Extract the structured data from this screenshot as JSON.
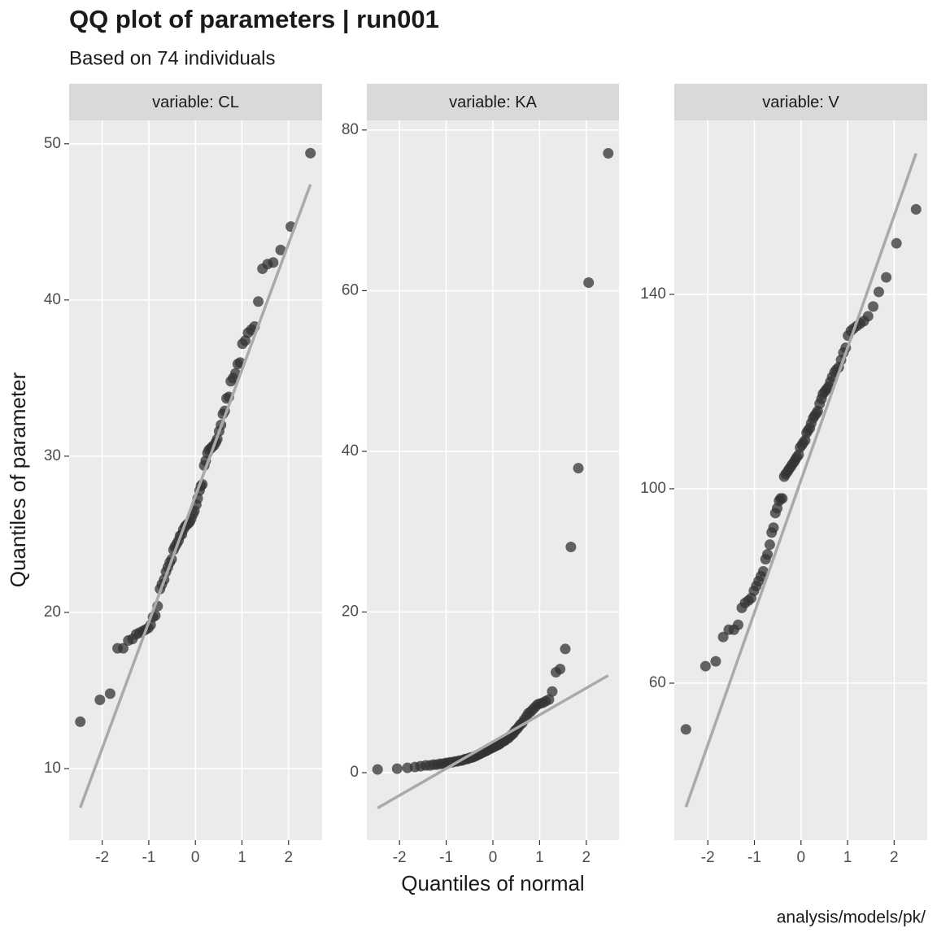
{
  "title": "QQ plot of parameters | run001",
  "subtitle": "Based on 74 individuals",
  "x_label": "Quantiles of normal",
  "y_label": "Quantiles of parameter",
  "caption": "analysis/models/pk/",
  "chart_data": [
    {
      "type": "scatter",
      "title": "variable: CL",
      "color": "#333333",
      "line_color": "#aaaaaa",
      "xlim": [
        -2.71,
        2.72
      ],
      "ylim": [
        5.42,
        51.5
      ],
      "xticks": [
        -2,
        -1,
        0,
        1,
        2
      ],
      "yticks": [
        10,
        20,
        30,
        40,
        50
      ],
      "x": [
        -2.47,
        -2.05,
        -1.83,
        -1.67,
        -1.55,
        -1.44,
        -1.35,
        -1.27,
        -1.2,
        -1.13,
        -1.07,
        -1.01,
        -0.96,
        -0.91,
        -0.86,
        -0.81,
        -0.76,
        -0.72,
        -0.67,
        -0.63,
        -0.59,
        -0.55,
        -0.51,
        -0.47,
        -0.44,
        -0.4,
        -0.36,
        -0.33,
        -0.29,
        -0.26,
        -0.22,
        -0.19,
        -0.15,
        -0.12,
        -0.09,
        -0.05,
        -0.02,
        0.02,
        0.05,
        0.09,
        0.12,
        0.15,
        0.19,
        0.22,
        0.26,
        0.29,
        0.33,
        0.36,
        0.4,
        0.44,
        0.47,
        0.51,
        0.55,
        0.59,
        0.63,
        0.67,
        0.72,
        0.76,
        0.81,
        0.86,
        0.91,
        0.96,
        1.01,
        1.07,
        1.13,
        1.2,
        1.27,
        1.35,
        1.44,
        1.55,
        1.67,
        1.83,
        2.05,
        2.47
      ],
      "y": [
        13.0,
        14.4,
        14.8,
        17.7,
        17.7,
        18.2,
        18.3,
        18.6,
        18.7,
        18.8,
        18.9,
        19.0,
        19.2,
        19.7,
        19.8,
        20.4,
        21.5,
        21.8,
        22.1,
        22.6,
        22.9,
        23.2,
        23.4,
        24.0,
        24.2,
        24.4,
        24.6,
        24.9,
        25.0,
        25.3,
        25.5,
        25.6,
        25.7,
        25.8,
        26.0,
        26.3,
        26.5,
        26.9,
        27.3,
        27.8,
        28.1,
        28.2,
        29.4,
        29.7,
        30.2,
        30.4,
        30.5,
        30.6,
        30.7,
        30.9,
        31.1,
        31.6,
        32.0,
        32.7,
        32.9,
        33.7,
        33.8,
        34.8,
        35.0,
        35.3,
        35.9,
        36.0,
        37.2,
        37.4,
        37.9,
        38.1,
        38.3,
        39.9,
        42.0,
        42.3,
        42.4,
        43.2,
        44.7,
        49.4
      ],
      "line": {
        "x": [
          -2.47,
          2.47
        ],
        "y": [
          7.5,
          47.4
        ]
      }
    },
    {
      "type": "scatter",
      "title": "variable: KA",
      "color": "#333333",
      "line_color": "#aaaaaa",
      "xlim": [
        -2.7,
        2.7
      ],
      "ylim": [
        -8.4,
        81.2
      ],
      "xticks": [
        -2,
        -1,
        0,
        1,
        2
      ],
      "yticks": [
        0,
        20,
        40,
        60,
        80
      ],
      "x": [
        -2.47,
        -2.05,
        -1.83,
        -1.67,
        -1.55,
        -1.44,
        -1.35,
        -1.27,
        -1.2,
        -1.13,
        -1.07,
        -1.01,
        -0.96,
        -0.91,
        -0.86,
        -0.81,
        -0.76,
        -0.72,
        -0.67,
        -0.63,
        -0.59,
        -0.55,
        -0.51,
        -0.47,
        -0.44,
        -0.4,
        -0.36,
        -0.33,
        -0.29,
        -0.26,
        -0.22,
        -0.19,
        -0.15,
        -0.12,
        -0.09,
        -0.05,
        -0.02,
        0.02,
        0.05,
        0.09,
        0.12,
        0.15,
        0.19,
        0.22,
        0.26,
        0.29,
        0.33,
        0.36,
        0.4,
        0.44,
        0.47,
        0.51,
        0.55,
        0.59,
        0.63,
        0.67,
        0.72,
        0.76,
        0.81,
        0.86,
        0.91,
        0.96,
        1.01,
        1.07,
        1.13,
        1.2,
        1.27,
        1.35,
        1.44,
        1.55,
        1.67,
        1.83,
        2.05,
        2.47
      ],
      "y": [
        0.4,
        0.5,
        0.6,
        0.7,
        0.8,
        0.9,
        0.9,
        1.0,
        1.0,
        1.1,
        1.1,
        1.2,
        1.2,
        1.3,
        1.3,
        1.4,
        1.4,
        1.5,
        1.5,
        1.6,
        1.7,
        1.7,
        1.8,
        1.9,
        1.9,
        2.0,
        2.1,
        2.2,
        2.3,
        2.4,
        2.5,
        2.6,
        2.7,
        2.8,
        2.9,
        3.0,
        3.1,
        3.2,
        3.3,
        3.4,
        3.5,
        3.6,
        3.8,
        3.9,
        4.0,
        4.2,
        4.3,
        4.5,
        4.7,
        4.9,
        5.2,
        5.4,
        5.7,
        6.0,
        6.2,
        6.6,
        7.0,
        7.4,
        7.6,
        7.9,
        8.2,
        8.5,
        8.6,
        8.7,
        8.9,
        9.1,
        10.1,
        12.5,
        12.9,
        15.4,
        28.1,
        37.9,
        61.0,
        77.1
      ],
      "line": {
        "x": [
          -2.47,
          2.47
        ],
        "y": [
          -4.4,
          12.1
        ]
      }
    },
    {
      "type": "scatter",
      "title": "variable: V",
      "color": "#333333",
      "line_color": "#aaaaaa",
      "xlim": [
        -2.72,
        2.71
      ],
      "ylim": [
        27.7,
        175.8
      ],
      "xticks": [
        -2,
        -1,
        0,
        1,
        2
      ],
      "yticks": [
        60,
        100,
        140
      ],
      "x": [
        -2.47,
        -2.05,
        -1.83,
        -1.67,
        -1.55,
        -1.44,
        -1.35,
        -1.27,
        -1.2,
        -1.13,
        -1.07,
        -1.01,
        -0.96,
        -0.91,
        -0.86,
        -0.81,
        -0.76,
        -0.72,
        -0.67,
        -0.63,
        -0.59,
        -0.55,
        -0.51,
        -0.47,
        -0.44,
        -0.4,
        -0.36,
        -0.33,
        -0.29,
        -0.26,
        -0.22,
        -0.19,
        -0.15,
        -0.12,
        -0.09,
        -0.05,
        -0.02,
        0.02,
        0.05,
        0.09,
        0.12,
        0.15,
        0.19,
        0.22,
        0.26,
        0.29,
        0.33,
        0.36,
        0.4,
        0.44,
        0.47,
        0.51,
        0.55,
        0.59,
        0.63,
        0.67,
        0.72,
        0.76,
        0.81,
        0.86,
        0.91,
        0.96,
        1.01,
        1.07,
        1.13,
        1.2,
        1.27,
        1.35,
        1.44,
        1.55,
        1.67,
        1.83,
        2.05,
        2.47
      ],
      "y": [
        50.5,
        63.5,
        64.5,
        69.5,
        71,
        71,
        72,
        75.5,
        76.5,
        77,
        77.5,
        79,
        80,
        81,
        82,
        83,
        85.5,
        86.5,
        88.5,
        91,
        92,
        95,
        96,
        97.5,
        98,
        98,
        102.5,
        103,
        103.5,
        104,
        104.5,
        105,
        105.5,
        106,
        106.5,
        107,
        108.5,
        109,
        109.5,
        110,
        111.5,
        112,
        112.5,
        113.5,
        114.5,
        115,
        115.5,
        116,
        117.5,
        118.5,
        119.5,
        120,
        120.5,
        121,
        122,
        123,
        124,
        124.5,
        125,
        126.5,
        128,
        129,
        131.5,
        132.5,
        133,
        133.5,
        134,
        134.5,
        135.5,
        137.5,
        140.5,
        143.5,
        150.5,
        157.5
      ],
      "line": {
        "x": [
          -2.47,
          2.47
        ],
        "y": [
          34.5,
          169
        ]
      }
    }
  ]
}
